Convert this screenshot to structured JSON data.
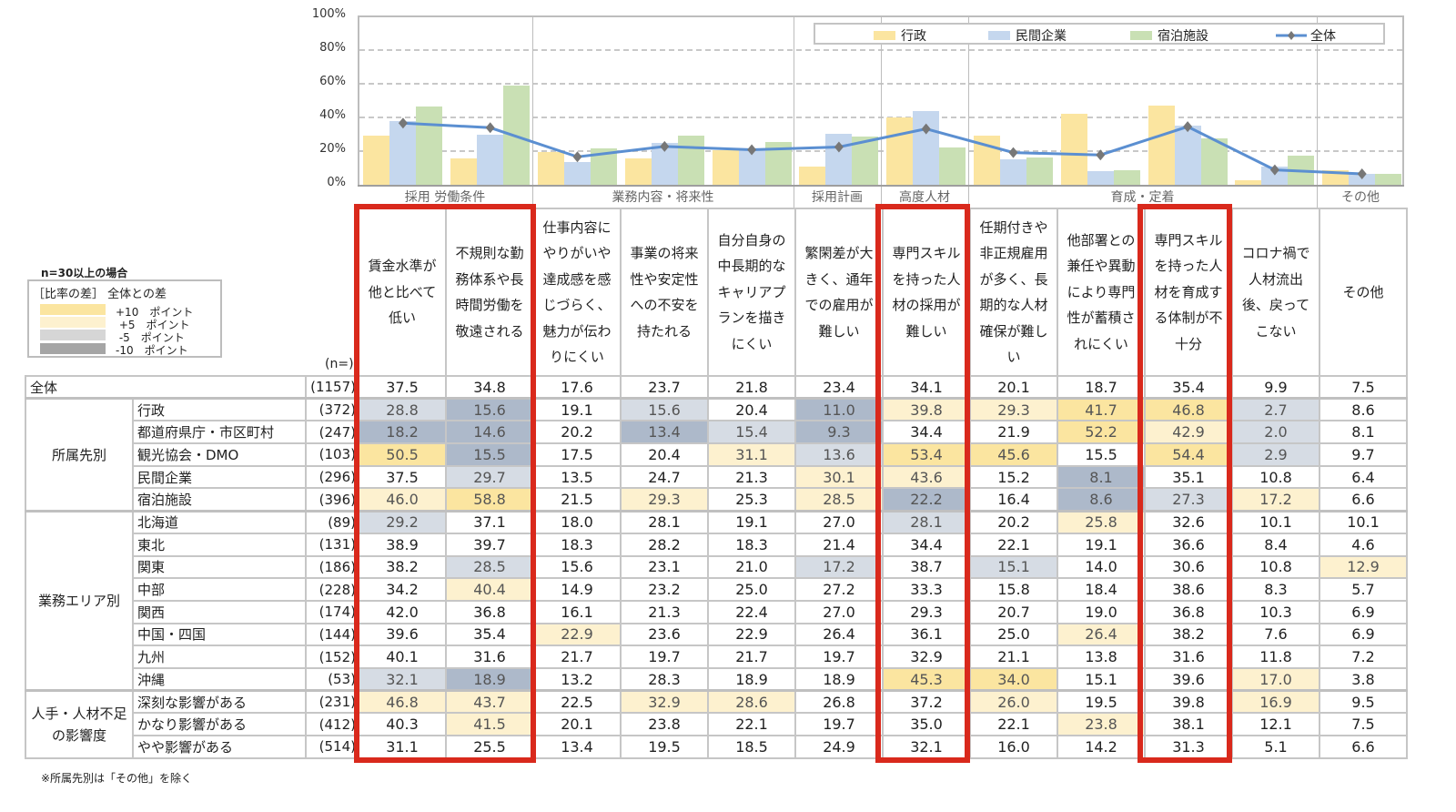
{
  "chart_data": {
    "type": "bar",
    "title": "",
    "xlabel": "",
    "ylabel": "",
    "ylim": [
      0,
      100
    ],
    "yticks": [
      "0%",
      "20%",
      "40%",
      "60%",
      "80%",
      "100%"
    ],
    "grid": true,
    "legend_position": "top-right inside",
    "category_groups": [
      {
        "label": "採用 労働条件",
        "span": 2
      },
      {
        "label": "業務内容・将来性",
        "span": 3
      },
      {
        "label": "採用計画",
        "span": 1
      },
      {
        "label": "高度人材",
        "span": 1
      },
      {
        "label": "育成・定着",
        "span": 4
      },
      {
        "label": "その他",
        "span": 1
      }
    ],
    "categories": [
      "賃金水準が他と比べて低い",
      "不規則な勤務体系や長時間労働を敬遠される",
      "仕事内容にやりがいや達成感を感じづらく、魅力が伝わりにくい",
      "事業の将来性や安定性への不安を持たれる",
      "自分自身の中長期的なキャリアプランを描きにくい",
      "繁閑差が大きく、通年での雇用が難しい",
      "専門スキルを持った人材の採用が難しい",
      "任期付きや非正規雇用が多く、長期的な人材確保が難しい",
      "他部署との兼任や異動により専門性が蓄積されにくい",
      "専門スキルを持った人材を育成する体制が不十分",
      "コロナ禍で人材流出後、戻ってこない",
      "その他"
    ],
    "series": [
      {
        "name": "行政",
        "type": "bar",
        "color": "#fbe5a0",
        "values": [
          28.8,
          15.6,
          19.1,
          15.6,
          20.4,
          11.0,
          39.8,
          29.3,
          41.7,
          46.8,
          2.7,
          8.6
        ]
      },
      {
        "name": "民間企業",
        "type": "bar",
        "color": "#c5d7ee",
        "values": [
          37.5,
          29.7,
          13.5,
          24.7,
          21.3,
          30.1,
          43.6,
          15.2,
          8.1,
          35.1,
          10.8,
          6.4
        ]
      },
      {
        "name": "宿泊施設",
        "type": "bar",
        "color": "#c9e0b4",
        "values": [
          46.0,
          58.8,
          21.5,
          29.3,
          25.3,
          28.5,
          22.2,
          16.4,
          8.6,
          27.3,
          17.2,
          6.6
        ]
      },
      {
        "name": "全体",
        "type": "line",
        "color": "#5b8fd1",
        "marker": "diamond",
        "values": [
          37.5,
          34.8,
          17.6,
          23.7,
          21.8,
          23.4,
          34.1,
          20.1,
          18.7,
          35.4,
          9.9,
          7.5
        ]
      }
    ]
  },
  "legend": {
    "items": [
      {
        "label": "行政",
        "color": "#fbe5a0"
      },
      {
        "label": "民間企業",
        "color": "#c5d7ee"
      },
      {
        "label": "宿泊施設",
        "color": "#c9e0b4"
      },
      {
        "label": "全体",
        "color": "#5b8fd1"
      }
    ]
  },
  "diff_legend": {
    "title": "n=30以上の場合",
    "header": "［比率の差］ 全体との差",
    "items": [
      {
        "label": "+10　ポイント",
        "class": "c-p10"
      },
      {
        "label": " +5　ポイント",
        "class": "c-p5"
      },
      {
        "label": " -5　ポイント",
        "class": "c-m5"
      },
      {
        "label": "-10　ポイント",
        "class": "c-m10"
      }
    ]
  },
  "table": {
    "n_label": "(n=)",
    "headers": [
      "賃金水準が他と比べて低い",
      "不規則な勤務体系や長時間労働を敬遠される",
      "仕事内容にやりがいや達成感を感じづらく、魅力が伝わりにくい",
      "事業の将来性や安定性への不安を持たれる",
      "自分自身の中長期的なキャリアプランを描きにくい",
      "繁閑差が大きく、通年での雇用が難しい",
      "専門スキルを持った人材の採用が難しい",
      "任期付きや非正規雇用が多く、長期的な人材確保が難しい",
      "他部署との兼任や異動により専門性が蓄積されにくい",
      "専門スキルを持った人材を育成する体制が不十分",
      "コロナ禍で人材流出後、戻ってこない",
      "その他"
    ],
    "groups": {
      "total": "全体",
      "affiliation": "所属先別",
      "area": "業務エリア別",
      "impact_line1": "人手・人材不足",
      "impact_line2": "の影響度"
    },
    "rows": [
      {
        "label": "全体",
        "n": "(1157)",
        "values": [
          "37.5",
          "34.8",
          "17.6",
          "23.7",
          "21.8",
          "23.4",
          "34.1",
          "20.1",
          "18.7",
          "35.4",
          "9.9",
          "7.5"
        ],
        "shade": [
          "",
          "",
          "",
          "",
          "",
          "",
          "",
          "",
          "",
          "",
          "",
          ""
        ]
      },
      {
        "label": "行政",
        "n": "(372)",
        "values": [
          "28.8",
          "15.6",
          "19.1",
          "15.6",
          "20.4",
          "11.0",
          "39.8",
          "29.3",
          "41.7",
          "46.8",
          "2.7",
          "8.6"
        ],
        "shade": [
          "m5",
          "m10",
          "",
          "m5",
          "",
          "m10",
          "p5",
          "p5",
          "p10",
          "p10",
          "m5",
          ""
        ]
      },
      {
        "label": "都道府県庁・市区町村",
        "n": "(247)",
        "values": [
          "18.2",
          "14.6",
          "20.2",
          "13.4",
          "15.4",
          "9.3",
          "34.4",
          "21.9",
          "52.2",
          "42.9",
          "2.0",
          "8.1"
        ],
        "shade": [
          "m10",
          "m10",
          "",
          "m10",
          "m5",
          "m10",
          "",
          "",
          "p10",
          "p5",
          "m5",
          ""
        ]
      },
      {
        "label": "観光協会・DMO",
        "n": "(103)",
        "values": [
          "50.5",
          "15.5",
          "17.5",
          "20.4",
          "31.1",
          "13.6",
          "53.4",
          "45.6",
          "15.5",
          "54.4",
          "2.9",
          "9.7"
        ],
        "shade": [
          "p10",
          "m10",
          "",
          "",
          "p5",
          "m5",
          "p10",
          "p10",
          "",
          "p10",
          "m5",
          ""
        ]
      },
      {
        "label": "民間企業",
        "n": "(296)",
        "values": [
          "37.5",
          "29.7",
          "13.5",
          "24.7",
          "21.3",
          "30.1",
          "43.6",
          "15.2",
          "8.1",
          "35.1",
          "10.8",
          "6.4"
        ],
        "shade": [
          "",
          "m5",
          "",
          "",
          "",
          "p5",
          "p5",
          "",
          "m10",
          "",
          "",
          ""
        ]
      },
      {
        "label": "宿泊施設",
        "n": "(396)",
        "values": [
          "46.0",
          "58.8",
          "21.5",
          "29.3",
          "25.3",
          "28.5",
          "22.2",
          "16.4",
          "8.6",
          "27.3",
          "17.2",
          "6.6"
        ],
        "shade": [
          "p5",
          "p10",
          "",
          "p5",
          "",
          "p5",
          "m10",
          "",
          "m10",
          "m5",
          "p5",
          ""
        ]
      },
      {
        "label": "北海道",
        "n": "(89)",
        "values": [
          "29.2",
          "37.1",
          "18.0",
          "28.1",
          "19.1",
          "27.0",
          "28.1",
          "20.2",
          "25.8",
          "32.6",
          "10.1",
          "10.1"
        ],
        "shade": [
          "m5",
          "",
          "",
          "",
          "",
          "",
          "m5",
          "",
          "p5",
          "",
          "",
          ""
        ]
      },
      {
        "label": "東北",
        "n": "(131)",
        "values": [
          "38.9",
          "39.7",
          "18.3",
          "28.2",
          "18.3",
          "21.4",
          "34.4",
          "22.1",
          "19.1",
          "36.6",
          "8.4",
          "4.6"
        ],
        "shade": [
          "",
          "",
          "",
          "",
          "",
          "",
          "",
          "",
          "",
          "",
          "",
          ""
        ]
      },
      {
        "label": "関東",
        "n": "(186)",
        "values": [
          "38.2",
          "28.5",
          "15.6",
          "23.1",
          "21.0",
          "17.2",
          "38.7",
          "15.1",
          "14.0",
          "30.6",
          "10.8",
          "12.9"
        ],
        "shade": [
          "",
          "m5",
          "",
          "",
          "",
          "m5",
          "",
          "m5",
          "",
          "",
          "",
          "p5"
        ]
      },
      {
        "label": "中部",
        "n": "(228)",
        "values": [
          "34.2",
          "40.4",
          "14.9",
          "23.2",
          "25.0",
          "27.2",
          "33.3",
          "15.8",
          "18.4",
          "38.6",
          "8.3",
          "5.7"
        ],
        "shade": [
          "",
          "p5",
          "",
          "",
          "",
          "",
          "",
          "",
          "",
          "",
          "",
          ""
        ]
      },
      {
        "label": "関西",
        "n": "(174)",
        "values": [
          "42.0",
          "36.8",
          "16.1",
          "21.3",
          "22.4",
          "27.0",
          "29.3",
          "20.7",
          "19.0",
          "36.8",
          "10.3",
          "6.9"
        ],
        "shade": [
          "",
          "",
          "",
          "",
          "",
          "",
          "",
          "",
          "",
          "",
          "",
          ""
        ]
      },
      {
        "label": "中国・四国",
        "n": "(144)",
        "values": [
          "39.6",
          "35.4",
          "22.9",
          "23.6",
          "22.9",
          "26.4",
          "36.1",
          "25.0",
          "26.4",
          "38.2",
          "7.6",
          "6.9"
        ],
        "shade": [
          "",
          "",
          "p5",
          "",
          "",
          "",
          "",
          "",
          "p5",
          "",
          "",
          ""
        ]
      },
      {
        "label": "九州",
        "n": "(152)",
        "values": [
          "40.1",
          "31.6",
          "21.7",
          "19.7",
          "21.7",
          "19.7",
          "32.9",
          "21.1",
          "13.8",
          "31.6",
          "11.8",
          "7.2"
        ],
        "shade": [
          "",
          "",
          "",
          "",
          "",
          "",
          "",
          "",
          "",
          "",
          "",
          ""
        ]
      },
      {
        "label": "沖縄",
        "n": "(53)",
        "values": [
          "32.1",
          "18.9",
          "13.2",
          "28.3",
          "18.9",
          "18.9",
          "45.3",
          "34.0",
          "15.1",
          "39.6",
          "17.0",
          "3.8"
        ],
        "shade": [
          "m5",
          "m10",
          "",
          "",
          "",
          "",
          "p10",
          "p10",
          "",
          "",
          "p5",
          ""
        ]
      },
      {
        "label": "深刻な影響がある",
        "n": "(231)",
        "values": [
          "46.8",
          "43.7",
          "22.5",
          "32.9",
          "28.6",
          "26.8",
          "37.2",
          "26.0",
          "19.5",
          "39.8",
          "16.9",
          "9.5"
        ],
        "shade": [
          "p5",
          "p5",
          "",
          "p5",
          "p5",
          "",
          "",
          "p5",
          "",
          "",
          "p5",
          ""
        ]
      },
      {
        "label": "かなり影響がある",
        "n": "(412)",
        "values": [
          "40.3",
          "41.5",
          "20.1",
          "23.8",
          "22.1",
          "19.7",
          "35.0",
          "22.1",
          "23.8",
          "38.1",
          "12.1",
          "7.5"
        ],
        "shade": [
          "",
          "p5",
          "",
          "",
          "",
          "",
          "",
          "",
          "p5",
          "",
          "",
          ""
        ]
      },
      {
        "label": "やや影響がある",
        "n": "(514)",
        "values": [
          "31.1",
          "25.5",
          "13.4",
          "19.5",
          "18.5",
          "24.9",
          "32.1",
          "16.0",
          "14.2",
          "31.3",
          "5.1",
          "6.6"
        ],
        "shade": [
          "",
          "",
          "",
          "",
          "",
          "",
          "",
          "",
          "",
          "",
          "",
          ""
        ]
      }
    ]
  },
  "footnote": "※所属先別は「その他」を除く"
}
